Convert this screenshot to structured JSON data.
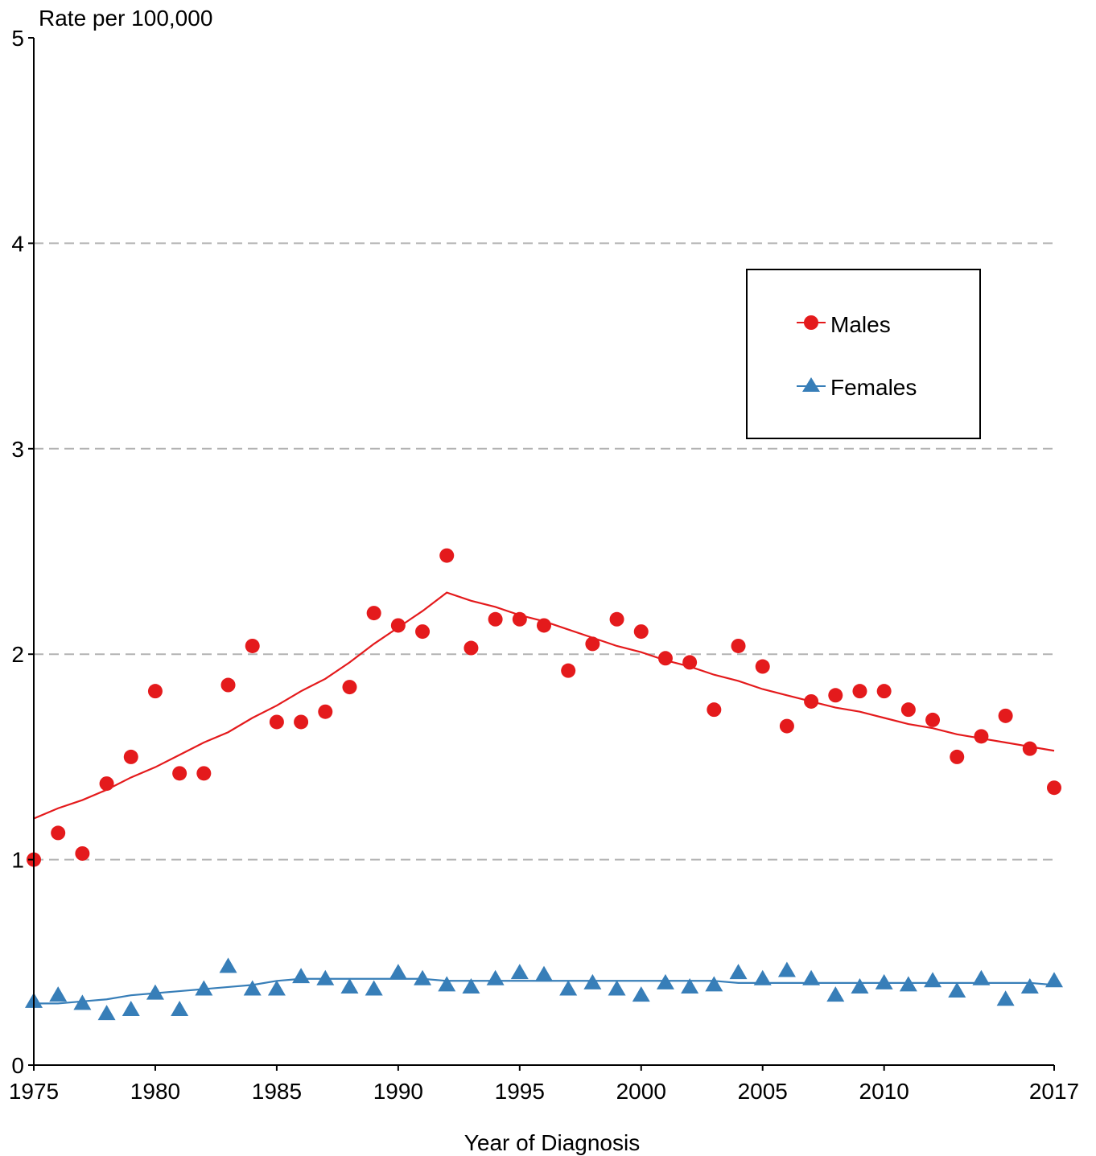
{
  "chart_data": {
    "type": "scatter",
    "title": "",
    "xlabel": "Year of Diagnosis",
    "ylabel": "Rate per 100,000",
    "xlim": [
      1975,
      2017
    ],
    "ylim": [
      0,
      5
    ],
    "x_ticks": [
      1975,
      1980,
      1985,
      1990,
      1995,
      2000,
      2005,
      2010,
      2017
    ],
    "y_ticks": [
      0,
      1,
      2,
      3,
      4,
      5
    ],
    "grid": "horizontal dashed at 1, 2, 3, 4",
    "legend_position": "right",
    "x": [
      1975,
      1976,
      1977,
      1978,
      1979,
      1980,
      1981,
      1982,
      1983,
      1984,
      1985,
      1986,
      1987,
      1988,
      1989,
      1990,
      1991,
      1992,
      1993,
      1994,
      1995,
      1996,
      1997,
      1998,
      1999,
      2000,
      2001,
      2002,
      2003,
      2004,
      2005,
      2006,
      2007,
      2008,
      2009,
      2010,
      2011,
      2012,
      2013,
      2014,
      2015,
      2016,
      2017
    ],
    "series": [
      {
        "name": "Males",
        "color": "#e41a1c",
        "marker": "circle",
        "values": [
          1.0,
          1.13,
          1.03,
          1.37,
          1.5,
          1.82,
          1.42,
          1.42,
          1.85,
          2.04,
          1.67,
          1.67,
          1.72,
          1.84,
          2.2,
          2.14,
          2.11,
          2.48,
          2.03,
          2.17,
          2.17,
          2.14,
          1.92,
          2.05,
          2.17,
          2.11,
          1.98,
          1.96,
          1.73,
          2.04,
          1.94,
          1.65,
          1.77,
          1.8,
          1.82,
          1.82,
          1.73,
          1.68,
          1.5,
          1.6,
          1.7,
          1.54,
          1.35
        ],
        "trend_x": [
          1975,
          1976,
          1977,
          1978,
          1979,
          1980,
          1981,
          1982,
          1983,
          1984,
          1985,
          1986,
          1987,
          1988,
          1989,
          1990,
          1991,
          1992,
          1993,
          1994,
          1995,
          1996,
          1997,
          1998,
          1999,
          2000,
          2001,
          2002,
          2003,
          2004,
          2005,
          2006,
          2007,
          2008,
          2009,
          2010,
          2011,
          2012,
          2013,
          2014,
          2015,
          2016,
          2017
        ],
        "trend": [
          1.2,
          1.25,
          1.29,
          1.34,
          1.4,
          1.45,
          1.51,
          1.57,
          1.62,
          1.69,
          1.75,
          1.82,
          1.88,
          1.96,
          2.05,
          2.13,
          2.21,
          2.3,
          2.26,
          2.23,
          2.19,
          2.16,
          2.12,
          2.08,
          2.04,
          2.01,
          1.97,
          1.94,
          1.9,
          1.87,
          1.83,
          1.8,
          1.77,
          1.74,
          1.72,
          1.69,
          1.66,
          1.64,
          1.61,
          1.59,
          1.57,
          1.55,
          1.53
        ]
      },
      {
        "name": "Females",
        "color": "#377eb8",
        "marker": "triangle",
        "values": [
          0.31,
          0.34,
          0.3,
          0.25,
          0.27,
          0.35,
          0.27,
          0.37,
          0.48,
          0.37,
          0.37,
          0.43,
          0.42,
          0.38,
          0.37,
          0.45,
          0.42,
          0.39,
          0.38,
          0.42,
          0.45,
          0.44,
          0.37,
          0.4,
          0.37,
          0.34,
          0.4,
          0.38,
          0.39,
          0.45,
          0.42,
          0.46,
          0.42,
          0.34,
          0.38,
          0.4,
          0.39,
          0.41,
          0.36,
          0.42,
          0.32,
          0.38,
          0.41
        ],
        "trend_x": [
          1975,
          1976,
          1977,
          1978,
          1979,
          1980,
          1981,
          1982,
          1983,
          1984,
          1985,
          1986,
          1987,
          1988,
          1989,
          1990,
          1991,
          1992,
          1993,
          1994,
          1995,
          1996,
          1997,
          1998,
          1999,
          2000,
          2001,
          2002,
          2003,
          2004,
          2005,
          2006,
          2007,
          2008,
          2009,
          2010,
          2011,
          2012,
          2013,
          2014,
          2015,
          2016,
          2017
        ],
        "trend": [
          0.3,
          0.3,
          0.31,
          0.32,
          0.34,
          0.35,
          0.36,
          0.37,
          0.38,
          0.39,
          0.41,
          0.42,
          0.42,
          0.42,
          0.42,
          0.42,
          0.42,
          0.41,
          0.41,
          0.41,
          0.41,
          0.41,
          0.41,
          0.41,
          0.41,
          0.41,
          0.41,
          0.41,
          0.41,
          0.4,
          0.4,
          0.4,
          0.4,
          0.4,
          0.4,
          0.4,
          0.4,
          0.4,
          0.4,
          0.4,
          0.4,
          0.4,
          0.39
        ]
      }
    ]
  }
}
